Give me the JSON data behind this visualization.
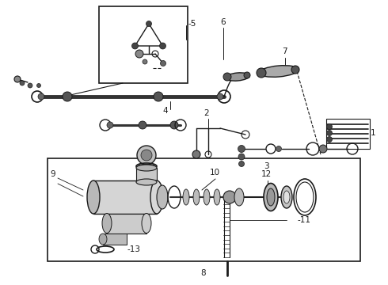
{
  "bg": "#ffffff",
  "lc": "#1a1a1a",
  "fig_w": 4.9,
  "fig_h": 3.6,
  "dpi": 100
}
